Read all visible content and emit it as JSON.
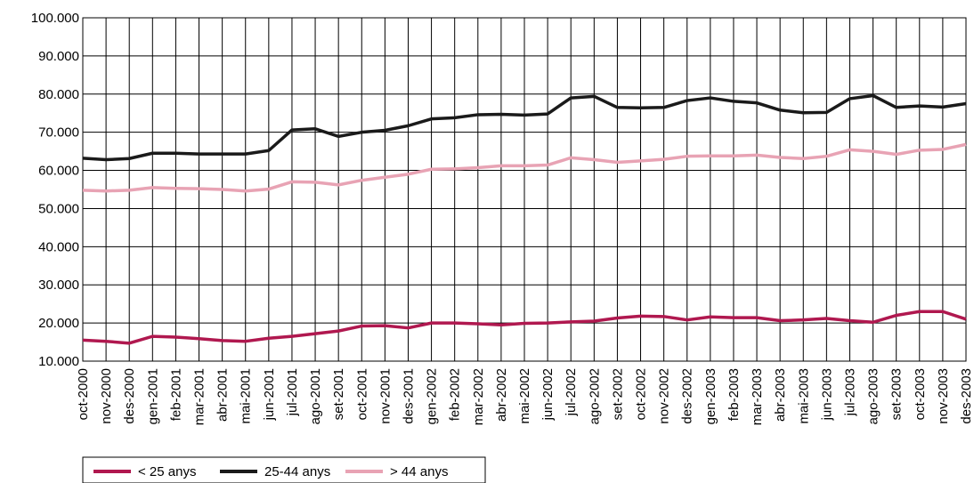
{
  "chart_data": {
    "type": "line",
    "categories": [
      "oct-2000",
      "nov-2000",
      "des-2000",
      "gen-2001",
      "feb-2001",
      "mar-2001",
      "abr-2001",
      "mai-2001",
      "jun-2001",
      "jul-2001",
      "ago-2001",
      "set-2001",
      "oct-2001",
      "nov-2001",
      "des-2001",
      "gen-2002",
      "feb-2002",
      "mar-2002",
      "abr-2002",
      "mai-2002",
      "jun-2002",
      "jul-2002",
      "ago-2002",
      "set-2002",
      "oct-2002",
      "nov-2002",
      "des-2002",
      "gen-2003",
      "feb-2003",
      "mar-2003",
      "abr-2003",
      "mai-2003",
      "jun-2003",
      "jul-2003",
      "ago-2003",
      "set-2003",
      "oct-2003",
      "nov-2003",
      "des-2003"
    ],
    "series": [
      {
        "name": "< 25 anys",
        "color": "#b0184f",
        "values": [
          15500,
          15200,
          14700,
          16500,
          16300,
          15900,
          15400,
          15200,
          16000,
          16500,
          17200,
          17900,
          19200,
          19300,
          18700,
          20000,
          20000,
          19800,
          19500,
          19900,
          20000,
          20300,
          20500,
          21300,
          21800,
          21700,
          20800,
          21600,
          21400,
          21400,
          20600,
          20800,
          21200,
          20600,
          20200,
          22000,
          23000,
          23000,
          21000
        ]
      },
      {
        "name": "25-44 anys",
        "color": "#1a1a1a",
        "values": [
          63200,
          62800,
          63100,
          64500,
          64500,
          64300,
          64300,
          64300,
          65200,
          70600,
          70900,
          68900,
          70000,
          70500,
          71700,
          73500,
          73800,
          74600,
          74700,
          74500,
          74800,
          79000,
          79400,
          76500,
          76400,
          76500,
          78300,
          79000,
          78100,
          77700,
          75800,
          75100,
          75200,
          78800,
          79600,
          76500,
          76900,
          76600,
          77500
        ]
      },
      {
        "name": "> 44 anys",
        "color": "#e8a3b4",
        "values": [
          54800,
          54600,
          54800,
          55500,
          55300,
          55200,
          55000,
          54600,
          55100,
          57000,
          56900,
          56200,
          57400,
          58200,
          59000,
          60300,
          60400,
          60700,
          61200,
          61200,
          61400,
          63300,
          62800,
          62100,
          62500,
          62900,
          63700,
          63800,
          63800,
          64000,
          63400,
          63100,
          63700,
          65400,
          65000,
          64200,
          65300,
          65500,
          66800
        ]
      }
    ],
    "ylim": [
      10000,
      100000
    ],
    "yticks": [
      {
        "value": 10000,
        "label": "10.000"
      },
      {
        "value": 20000,
        "label": "20.000"
      },
      {
        "value": 30000,
        "label": "30.000"
      },
      {
        "value": 40000,
        "label": "40.000"
      },
      {
        "value": 50000,
        "label": "50.000"
      },
      {
        "value": 60000,
        "label": "60.000"
      },
      {
        "value": 70000,
        "label": "70.000"
      },
      {
        "value": 80000,
        "label": "80.000"
      },
      {
        "value": 90000,
        "label": "90.000"
      },
      {
        "value": 100000,
        "label": "100.000"
      }
    ],
    "grid": true
  }
}
